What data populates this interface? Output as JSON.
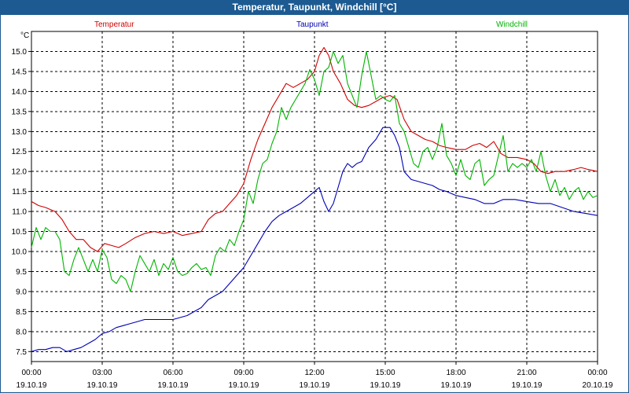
{
  "window": {
    "title": "Temperatur, Taupunkt, Windchill [°C]"
  },
  "chart_data": {
    "type": "line",
    "title": "Temperatur, Taupunkt, Windchill [°C]",
    "ylabel": "°C",
    "ylim": [
      7.25,
      15.5
    ],
    "xlim": [
      0,
      24
    ],
    "grid": true,
    "yticks": [
      7.5,
      8.0,
      8.5,
      9.0,
      9.5,
      10.0,
      10.5,
      11.0,
      11.5,
      12.0,
      12.5,
      13.0,
      13.5,
      14.0,
      14.5,
      15.0
    ],
    "ytick_labels": [
      "7.5",
      "8.0",
      "8.5",
      "9.0",
      "9.5",
      "10.0",
      "10.5",
      "11.0",
      "11.5",
      "12.0",
      "12.5",
      "13.0",
      "13.5",
      "14.0",
      "14.5",
      "15.0"
    ],
    "xticks": [
      {
        "hour": 0,
        "time": "00:00",
        "date": "19.10.19"
      },
      {
        "hour": 3,
        "time": "03:00",
        "date": "19.10.19"
      },
      {
        "hour": 6,
        "time": "06:00",
        "date": "19.10.19"
      },
      {
        "hour": 9,
        "time": "09:00",
        "date": "19.10.19"
      },
      {
        "hour": 12,
        "time": "12:00",
        "date": "19.10.19"
      },
      {
        "hour": 15,
        "time": "15:00",
        "date": "19.10.19"
      },
      {
        "hour": 18,
        "time": "18:00",
        "date": "19.10.19"
      },
      {
        "hour": 21,
        "time": "21:00",
        "date": "19.10.19"
      },
      {
        "hour": 24,
        "time": "00:00",
        "date": "20.10.19"
      }
    ],
    "series": [
      {
        "name": "Temperatur",
        "color": "#d00000",
        "points": [
          [
            0,
            11.25
          ],
          [
            0.3,
            11.15
          ],
          [
            0.6,
            11.1
          ],
          [
            1.0,
            11.0
          ],
          [
            1.3,
            10.8
          ],
          [
            1.6,
            10.5
          ],
          [
            1.9,
            10.3
          ],
          [
            2.2,
            10.3
          ],
          [
            2.5,
            10.1
          ],
          [
            2.8,
            10.0
          ],
          [
            3.1,
            10.2
          ],
          [
            3.4,
            10.15
          ],
          [
            3.7,
            10.1
          ],
          [
            4.0,
            10.2
          ],
          [
            4.4,
            10.35
          ],
          [
            4.8,
            10.45
          ],
          [
            5.2,
            10.5
          ],
          [
            5.6,
            10.45
          ],
          [
            6.0,
            10.5
          ],
          [
            6.4,
            10.4
          ],
          [
            6.8,
            10.45
          ],
          [
            7.2,
            10.5
          ],
          [
            7.5,
            10.8
          ],
          [
            7.8,
            10.95
          ],
          [
            8.1,
            11.0
          ],
          [
            8.4,
            11.2
          ],
          [
            8.7,
            11.4
          ],
          [
            9.0,
            11.7
          ],
          [
            9.3,
            12.3
          ],
          [
            9.6,
            12.8
          ],
          [
            9.9,
            13.2
          ],
          [
            10.2,
            13.6
          ],
          [
            10.5,
            13.9
          ],
          [
            10.8,
            14.2
          ],
          [
            11.1,
            14.1
          ],
          [
            11.4,
            14.2
          ],
          [
            11.7,
            14.3
          ],
          [
            12.0,
            14.5
          ],
          [
            12.2,
            14.9
          ],
          [
            12.4,
            15.1
          ],
          [
            12.6,
            14.9
          ],
          [
            12.8,
            14.5
          ],
          [
            13.1,
            14.2
          ],
          [
            13.4,
            13.8
          ],
          [
            13.7,
            13.65
          ],
          [
            14.0,
            13.6
          ],
          [
            14.3,
            13.65
          ],
          [
            14.6,
            13.75
          ],
          [
            14.9,
            13.85
          ],
          [
            15.2,
            13.9
          ],
          [
            15.5,
            13.8
          ],
          [
            15.8,
            13.3
          ],
          [
            16.1,
            13.0
          ],
          [
            16.4,
            12.9
          ],
          [
            16.7,
            12.8
          ],
          [
            17.0,
            12.75
          ],
          [
            17.3,
            12.65
          ],
          [
            17.6,
            12.6
          ],
          [
            18.0,
            12.55
          ],
          [
            18.4,
            12.55
          ],
          [
            18.7,
            12.65
          ],
          [
            19.0,
            12.7
          ],
          [
            19.3,
            12.6
          ],
          [
            19.6,
            12.75
          ],
          [
            19.9,
            12.45
          ],
          [
            20.2,
            12.35
          ],
          [
            20.6,
            12.35
          ],
          [
            21.0,
            12.3
          ],
          [
            21.3,
            12.2
          ],
          [
            21.6,
            12.0
          ],
          [
            21.9,
            11.95
          ],
          [
            22.2,
            12.0
          ],
          [
            22.6,
            12.0
          ],
          [
            23.0,
            12.05
          ],
          [
            23.3,
            12.1
          ],
          [
            23.6,
            12.05
          ],
          [
            24.0,
            12.0
          ]
        ]
      },
      {
        "name": "Taupunkt",
        "color": "#0000b4",
        "points": [
          [
            0,
            7.5
          ],
          [
            0.3,
            7.55
          ],
          [
            0.6,
            7.55
          ],
          [
            0.9,
            7.6
          ],
          [
            1.2,
            7.6
          ],
          [
            1.5,
            7.5
          ],
          [
            1.8,
            7.55
          ],
          [
            2.1,
            7.6
          ],
          [
            2.4,
            7.7
          ],
          [
            2.7,
            7.8
          ],
          [
            3.0,
            7.95
          ],
          [
            3.3,
            8.0
          ],
          [
            3.6,
            8.1
          ],
          [
            3.9,
            8.15
          ],
          [
            4.2,
            8.2
          ],
          [
            4.5,
            8.25
          ],
          [
            4.8,
            8.3
          ],
          [
            5.1,
            8.3
          ],
          [
            5.4,
            8.3
          ],
          [
            5.7,
            8.3
          ],
          [
            6.0,
            8.3
          ],
          [
            6.3,
            8.35
          ],
          [
            6.6,
            8.4
          ],
          [
            6.9,
            8.5
          ],
          [
            7.2,
            8.6
          ],
          [
            7.5,
            8.8
          ],
          [
            7.8,
            8.9
          ],
          [
            8.1,
            9.0
          ],
          [
            8.4,
            9.2
          ],
          [
            8.7,
            9.4
          ],
          [
            9.0,
            9.6
          ],
          [
            9.3,
            9.9
          ],
          [
            9.6,
            10.2
          ],
          [
            9.9,
            10.5
          ],
          [
            10.2,
            10.75
          ],
          [
            10.5,
            10.9
          ],
          [
            10.8,
            11.0
          ],
          [
            11.1,
            11.1
          ],
          [
            11.4,
            11.2
          ],
          [
            11.7,
            11.35
          ],
          [
            12.0,
            11.5
          ],
          [
            12.2,
            11.6
          ],
          [
            12.4,
            11.25
          ],
          [
            12.6,
            11.0
          ],
          [
            12.8,
            11.2
          ],
          [
            13.0,
            11.6
          ],
          [
            13.2,
            12.0
          ],
          [
            13.4,
            12.2
          ],
          [
            13.6,
            12.1
          ],
          [
            13.8,
            12.2
          ],
          [
            14.0,
            12.25
          ],
          [
            14.3,
            12.6
          ],
          [
            14.6,
            12.8
          ],
          [
            14.9,
            13.1
          ],
          [
            15.2,
            13.1
          ],
          [
            15.4,
            12.9
          ],
          [
            15.6,
            12.6
          ],
          [
            15.8,
            12.0
          ],
          [
            16.1,
            11.8
          ],
          [
            16.4,
            11.75
          ],
          [
            16.7,
            11.7
          ],
          [
            17.0,
            11.65
          ],
          [
            17.3,
            11.55
          ],
          [
            17.6,
            11.5
          ],
          [
            18.0,
            11.4
          ],
          [
            18.4,
            11.35
          ],
          [
            18.8,
            11.3
          ],
          [
            19.2,
            11.2
          ],
          [
            19.6,
            11.2
          ],
          [
            20.0,
            11.3
          ],
          [
            20.5,
            11.3
          ],
          [
            21.0,
            11.25
          ],
          [
            21.5,
            11.2
          ],
          [
            22.0,
            11.2
          ],
          [
            22.5,
            11.1
          ],
          [
            23.0,
            11.0
          ],
          [
            23.5,
            10.95
          ],
          [
            24.0,
            10.9
          ]
        ]
      },
      {
        "name": "Windchill",
        "color": "#00b400",
        "points": [
          [
            0,
            10.1
          ],
          [
            0.2,
            10.6
          ],
          [
            0.4,
            10.3
          ],
          [
            0.6,
            10.6
          ],
          [
            0.8,
            10.5
          ],
          [
            1.0,
            10.5
          ],
          [
            1.2,
            10.3
          ],
          [
            1.4,
            9.5
          ],
          [
            1.6,
            9.4
          ],
          [
            1.8,
            9.8
          ],
          [
            2.0,
            10.1
          ],
          [
            2.2,
            9.8
          ],
          [
            2.4,
            9.5
          ],
          [
            2.6,
            9.8
          ],
          [
            2.8,
            9.5
          ],
          [
            3.0,
            10.05
          ],
          [
            3.2,
            9.85
          ],
          [
            3.4,
            9.3
          ],
          [
            3.6,
            9.2
          ],
          [
            3.8,
            9.4
          ],
          [
            4.0,
            9.3
          ],
          [
            4.2,
            9.0
          ],
          [
            4.4,
            9.5
          ],
          [
            4.6,
            9.9
          ],
          [
            4.8,
            9.7
          ],
          [
            5.0,
            9.5
          ],
          [
            5.2,
            9.8
          ],
          [
            5.4,
            9.4
          ],
          [
            5.6,
            9.7
          ],
          [
            5.8,
            9.55
          ],
          [
            6.0,
            9.85
          ],
          [
            6.2,
            9.5
          ],
          [
            6.4,
            9.4
          ],
          [
            6.6,
            9.45
          ],
          [
            6.8,
            9.6
          ],
          [
            7.0,
            9.7
          ],
          [
            7.2,
            9.55
          ],
          [
            7.4,
            9.6
          ],
          [
            7.6,
            9.4
          ],
          [
            7.8,
            9.9
          ],
          [
            8.0,
            10.1
          ],
          [
            8.2,
            10.0
          ],
          [
            8.4,
            10.3
          ],
          [
            8.6,
            10.15
          ],
          [
            8.8,
            10.5
          ],
          [
            9.0,
            10.8
          ],
          [
            9.2,
            11.5
          ],
          [
            9.4,
            11.2
          ],
          [
            9.6,
            11.8
          ],
          [
            9.8,
            12.2
          ],
          [
            10.0,
            12.3
          ],
          [
            10.2,
            12.7
          ],
          [
            10.4,
            13.0
          ],
          [
            10.6,
            13.6
          ],
          [
            10.8,
            13.3
          ],
          [
            11.0,
            13.6
          ],
          [
            11.2,
            13.8
          ],
          [
            11.4,
            14.0
          ],
          [
            11.6,
            14.2
          ],
          [
            11.8,
            14.55
          ],
          [
            12.0,
            14.3
          ],
          [
            12.2,
            13.9
          ],
          [
            12.4,
            14.5
          ],
          [
            12.6,
            14.6
          ],
          [
            12.8,
            15.0
          ],
          [
            13.0,
            14.7
          ],
          [
            13.2,
            14.9
          ],
          [
            13.4,
            14.2
          ],
          [
            13.6,
            13.9
          ],
          [
            13.8,
            13.6
          ],
          [
            14.0,
            14.4
          ],
          [
            14.2,
            15.0
          ],
          [
            14.4,
            14.4
          ],
          [
            14.6,
            13.8
          ],
          [
            14.8,
            13.9
          ],
          [
            15.0,
            13.8
          ],
          [
            15.2,
            13.75
          ],
          [
            15.4,
            13.9
          ],
          [
            15.6,
            13.2
          ],
          [
            15.8,
            13.0
          ],
          [
            16.0,
            12.6
          ],
          [
            16.2,
            12.2
          ],
          [
            16.4,
            12.1
          ],
          [
            16.6,
            12.5
          ],
          [
            16.8,
            12.6
          ],
          [
            17.0,
            12.3
          ],
          [
            17.2,
            12.6
          ],
          [
            17.4,
            13.2
          ],
          [
            17.6,
            12.4
          ],
          [
            17.8,
            12.2
          ],
          [
            18.0,
            11.9
          ],
          [
            18.2,
            12.3
          ],
          [
            18.4,
            11.9
          ],
          [
            18.6,
            11.8
          ],
          [
            18.8,
            12.2
          ],
          [
            19.0,
            12.3
          ],
          [
            19.2,
            11.65
          ],
          [
            19.4,
            11.8
          ],
          [
            19.6,
            11.9
          ],
          [
            19.8,
            12.4
          ],
          [
            20.0,
            12.9
          ],
          [
            20.2,
            12.0
          ],
          [
            20.4,
            12.2
          ],
          [
            20.6,
            12.1
          ],
          [
            20.8,
            12.2
          ],
          [
            21.0,
            12.1
          ],
          [
            21.2,
            12.3
          ],
          [
            21.4,
            12.0
          ],
          [
            21.6,
            12.5
          ],
          [
            21.8,
            11.9
          ],
          [
            22.0,
            11.5
          ],
          [
            22.2,
            11.8
          ],
          [
            22.4,
            11.4
          ],
          [
            22.6,
            11.6
          ],
          [
            22.8,
            11.3
          ],
          [
            23.0,
            11.5
          ],
          [
            23.2,
            11.6
          ],
          [
            23.4,
            11.3
          ],
          [
            23.6,
            11.5
          ],
          [
            23.8,
            11.35
          ],
          [
            24.0,
            11.4
          ]
        ]
      }
    ],
    "legend": [
      "Temperatur",
      "Taupunkt",
      "Windchill"
    ]
  }
}
